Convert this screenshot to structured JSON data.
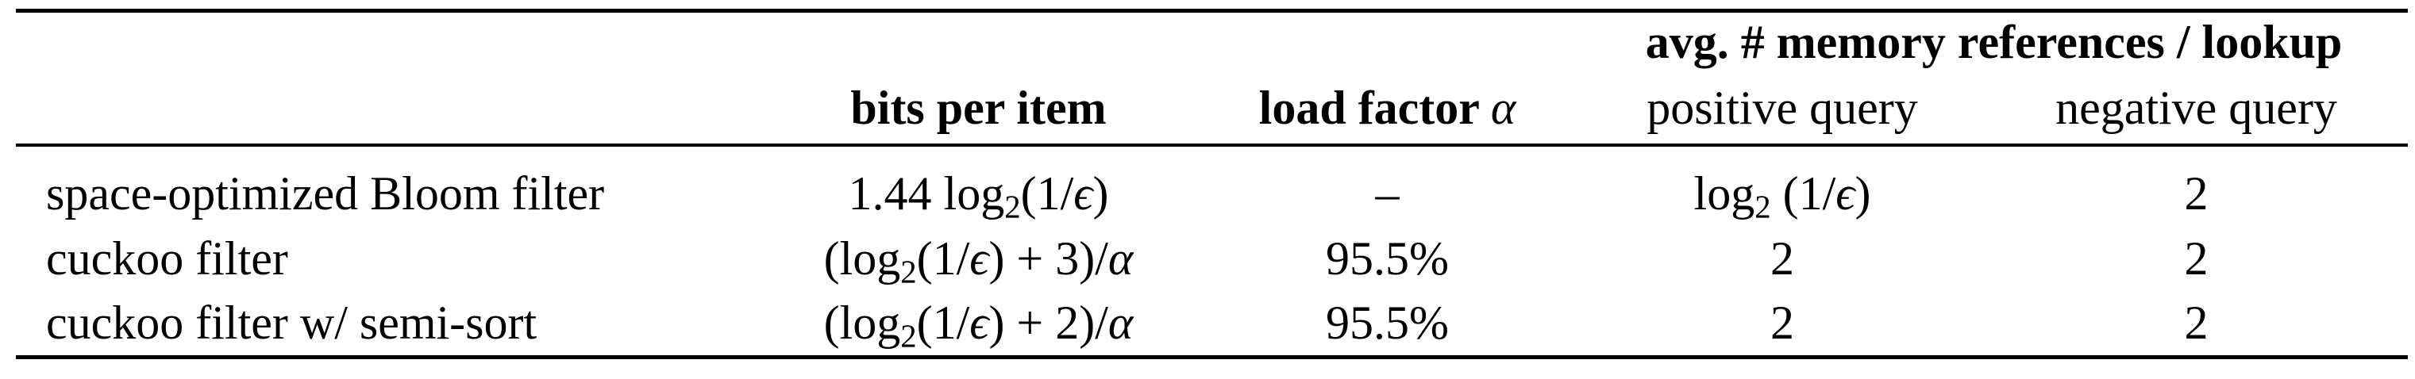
{
  "table": {
    "group_header": "avg. # memory references / lookup",
    "columns": {
      "label": "",
      "bits": "bits per item",
      "load_parts": [
        [
          "load factor ",
          ""
        ],
        [
          "α",
          "regit"
        ]
      ],
      "positive": "positive query",
      "negative": "negative query"
    },
    "rows": [
      {
        "name": "space-optimized Bloom filter",
        "bits_parts": [
          [
            "1.44 log",
            ""
          ],
          [
            "2",
            "sub"
          ],
          [
            "(1/",
            ""
          ],
          [
            "ϵ",
            "it"
          ],
          [
            ")",
            ""
          ]
        ],
        "load": "–",
        "positive_parts": [
          [
            "log",
            ""
          ],
          [
            "2",
            "sub"
          ],
          [
            " (1/",
            ""
          ],
          [
            "ϵ",
            "it"
          ],
          [
            ")",
            ""
          ]
        ],
        "negative": "2"
      },
      {
        "name": "cuckoo filter",
        "bits_parts": [
          [
            "(log",
            ""
          ],
          [
            "2",
            "sub"
          ],
          [
            "(1/",
            ""
          ],
          [
            "ϵ",
            "it"
          ],
          [
            ") + 3)/",
            ""
          ],
          [
            "α",
            "it"
          ]
        ],
        "load": "95.5%",
        "positive": "2",
        "negative": "2"
      },
      {
        "name": "cuckoo filter w/ semi-sort",
        "bits_parts": [
          [
            "(log",
            ""
          ],
          [
            "2",
            "sub"
          ],
          [
            "(1/",
            ""
          ],
          [
            "ϵ",
            "it"
          ],
          [
            ") + 2)/",
            ""
          ],
          [
            "α",
            "it"
          ]
        ],
        "load": "95.5%",
        "positive": "2",
        "negative": "2"
      }
    ]
  }
}
